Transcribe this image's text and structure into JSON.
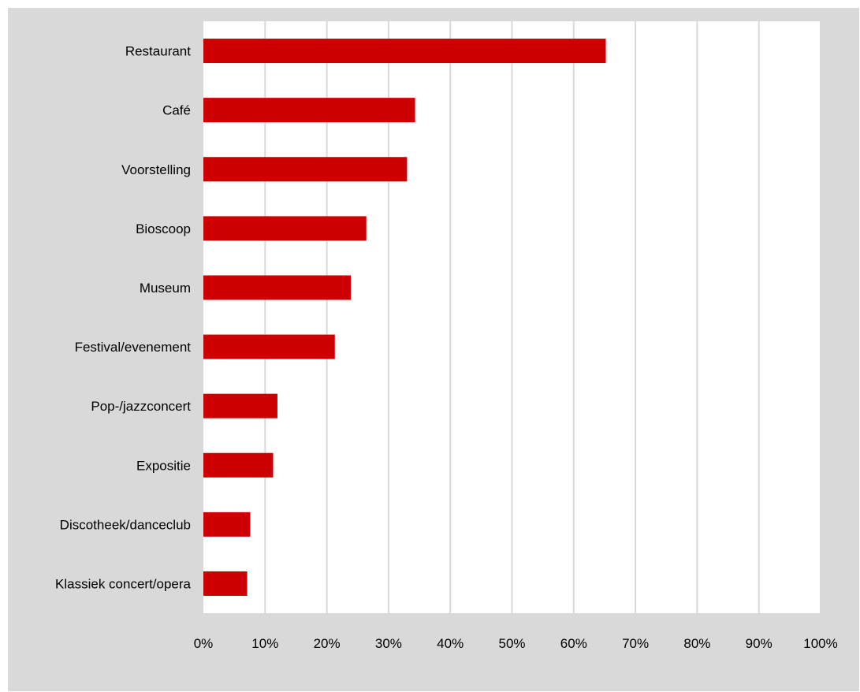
{
  "colors": {
    "frame_background": "#d9d9d9",
    "plot_background": "#ffffff",
    "gridline": "#d9d9d9",
    "bar": "#cc0000"
  },
  "chart_data": {
    "type": "bar",
    "orientation": "horizontal",
    "categories": [
      "Restaurant",
      "Café",
      "Voorstelling",
      "Bioscoop",
      "Museum",
      "Festival/evenement",
      "Pop-/jazzconcert",
      "Expositie",
      "Discotheek/danceclub",
      "Klassiek concert/opera"
    ],
    "values": [
      65.2,
      34.3,
      33.0,
      26.4,
      23.9,
      21.3,
      12.0,
      11.3,
      7.6,
      7.1
    ],
    "xlim": [
      0,
      100
    ],
    "x_ticks": [
      "0%",
      "10%",
      "20%",
      "30%",
      "40%",
      "50%",
      "60%",
      "70%",
      "80%",
      "90%",
      "100%"
    ],
    "grid": "vertical",
    "legend": "none",
    "title": "",
    "xlabel": "",
    "ylabel": ""
  }
}
